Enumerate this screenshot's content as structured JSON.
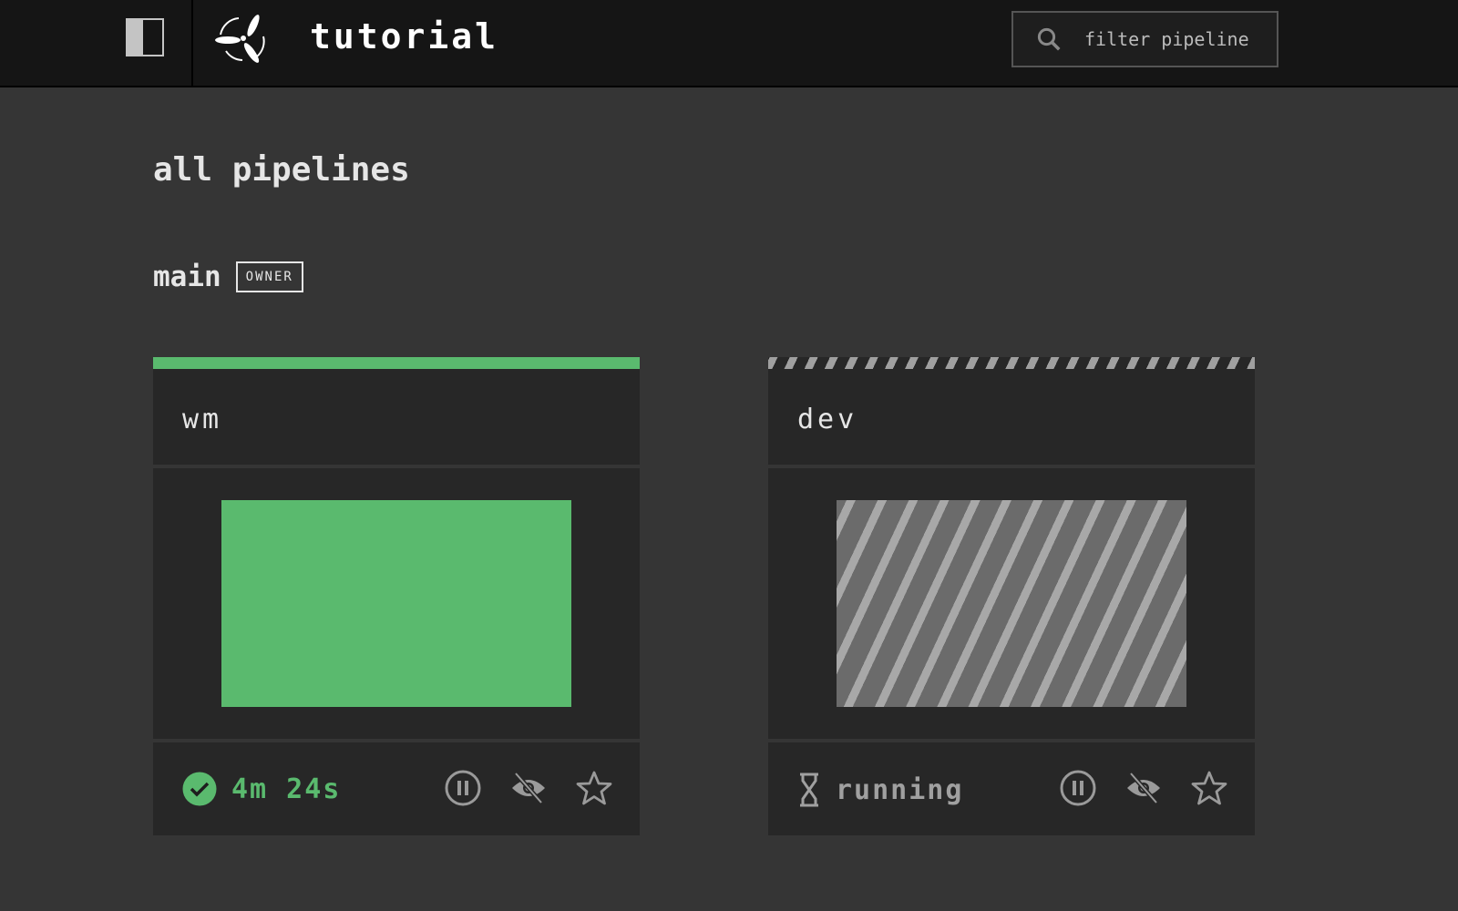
{
  "header": {
    "team": "tutorial",
    "search_placeholder": "filter pipeline"
  },
  "page": {
    "title": "all pipelines"
  },
  "group": {
    "name": "main",
    "badge": "OWNER"
  },
  "colors": {
    "succeeded": "#5aba6e",
    "running": "#a0a0a0"
  },
  "pipelines": [
    {
      "name": "wm",
      "status": "succeeded",
      "status_text": "4m 24s",
      "status_icon": "check-circle-icon"
    },
    {
      "name": "dev",
      "status": "running",
      "status_text": "running",
      "status_icon": "hourglass-icon"
    }
  ]
}
